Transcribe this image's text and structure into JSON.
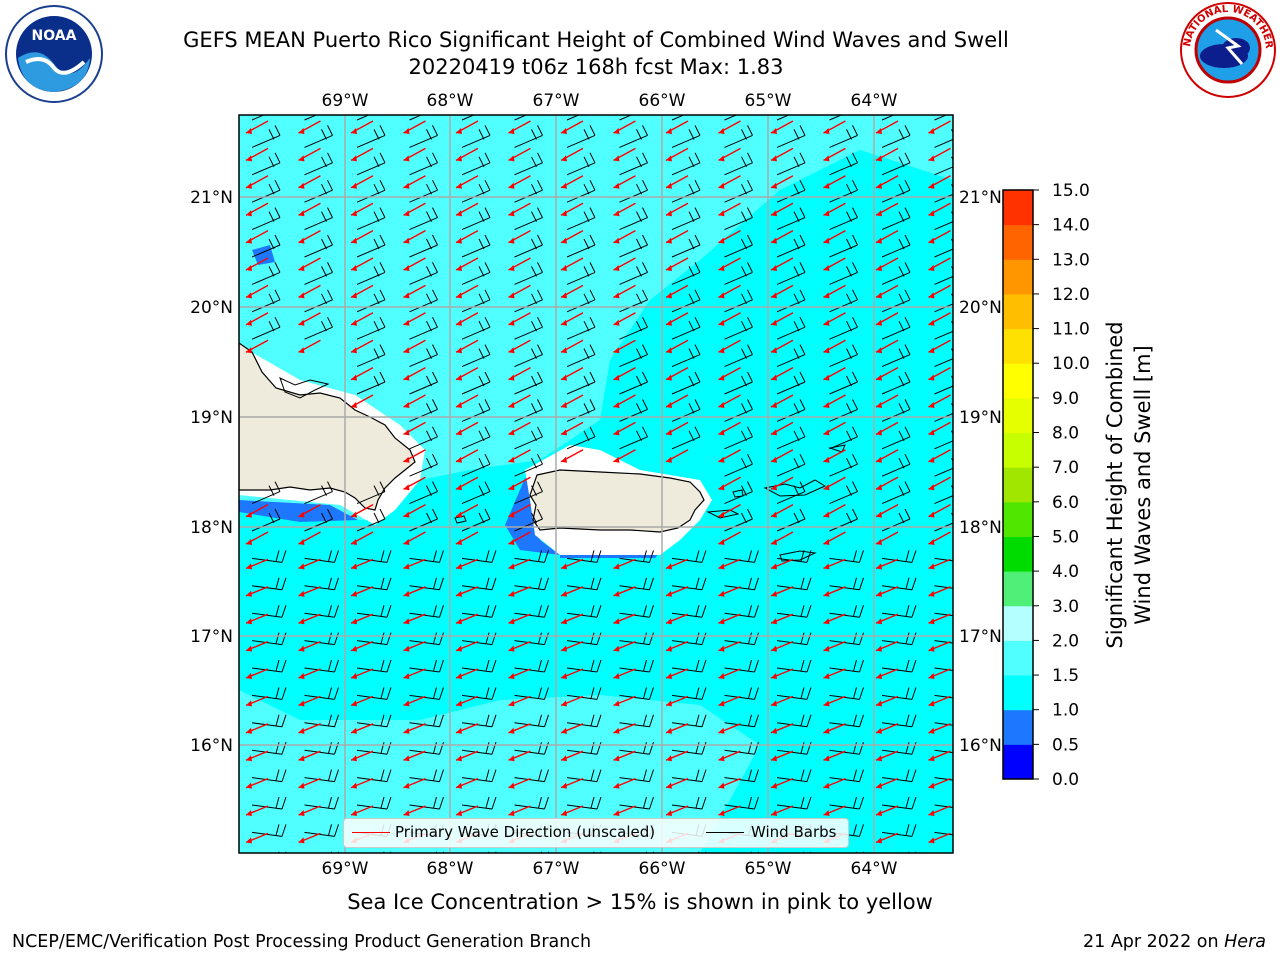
{
  "header": {
    "title_line1": "GEFS MEAN Puerto Rico Significant Height of Combined Wind Waves and Swell",
    "title_line2": "20220419 t06z 168h fcst   Max: 1.83"
  },
  "logos": {
    "left": "NOAA",
    "right": "NATIONAL WEATHER SERVICE"
  },
  "map": {
    "lon_labels": [
      "69°W",
      "68°W",
      "67°W",
      "66°W",
      "65°W",
      "64°W"
    ],
    "lat_labels": [
      "21°N",
      "20°N",
      "19°N",
      "18°N",
      "17°N",
      "16°N"
    ],
    "gridline_color": "#aaaaaa",
    "land_color": "#efebdc",
    "ocean_color": "#00ffff"
  },
  "legend": {
    "wave_label": "Primary Wave Direction (unscaled)",
    "barb_label": "Wind Barbs",
    "wave_color": "#ff0000",
    "barb_color": "#000000"
  },
  "colorbar": {
    "title_line1": "Significant Height of Combined",
    "title_line2": "Wind Waves and Swell [m]",
    "ticks": [
      "0.0",
      "0.5",
      "1.0",
      "1.5",
      "2.0",
      "3.0",
      "4.0",
      "5.0",
      "6.0",
      "7.0",
      "8.0",
      "9.0",
      "10.0",
      "11.0",
      "12.0",
      "13.0",
      "14.0",
      "15.0"
    ],
    "colors": [
      "#0000ff",
      "#1e78ff",
      "#00ffff",
      "#50ffff",
      "#b4ffff",
      "#50f078",
      "#00dc00",
      "#50e600",
      "#a0e600",
      "#c8ff00",
      "#e6ff00",
      "#ffff00",
      "#ffe100",
      "#ffbe00",
      "#ff9600",
      "#ff6400",
      "#ff3200"
    ]
  },
  "footnote": "Sea Ice Concentration > 15% is shown in pink to yellow",
  "credits": {
    "left": "NCEP/EMC/Verification Post Processing Product Generation Branch",
    "right_date": "21 Apr 2022 on ",
    "right_host": "Hera"
  }
}
